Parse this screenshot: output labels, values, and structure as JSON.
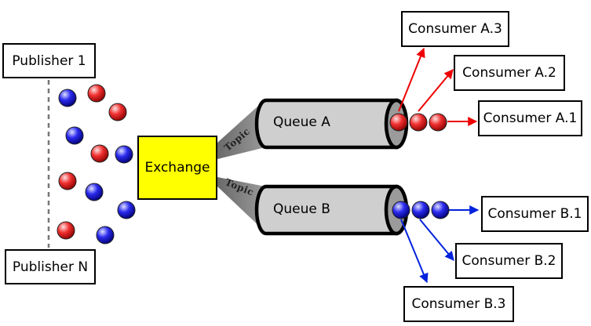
{
  "publishers": {
    "first_label": "Publisher 1",
    "last_label": "Publisher N"
  },
  "exchange": {
    "label": "Exchange"
  },
  "bindings": {
    "topic_a": "Topic",
    "topic_b": "Topic"
  },
  "queues": {
    "a": {
      "label": "Queue A"
    },
    "b": {
      "label": "Queue B"
    }
  },
  "consumers": {
    "a": [
      "Consumer A.1",
      "Consumer A.2",
      "Consumer A.3"
    ],
    "b": [
      "Consumer B.1",
      "Consumer B.2",
      "Consumer B.3"
    ]
  },
  "colors": {
    "message_red": "#ff2020",
    "message_blue": "#1a1aff",
    "exchange_fill": "#ffff00",
    "queue_fill": "#cfcfcf",
    "arrow_red": "#ee0000",
    "arrow_blue": "#0022dd"
  }
}
